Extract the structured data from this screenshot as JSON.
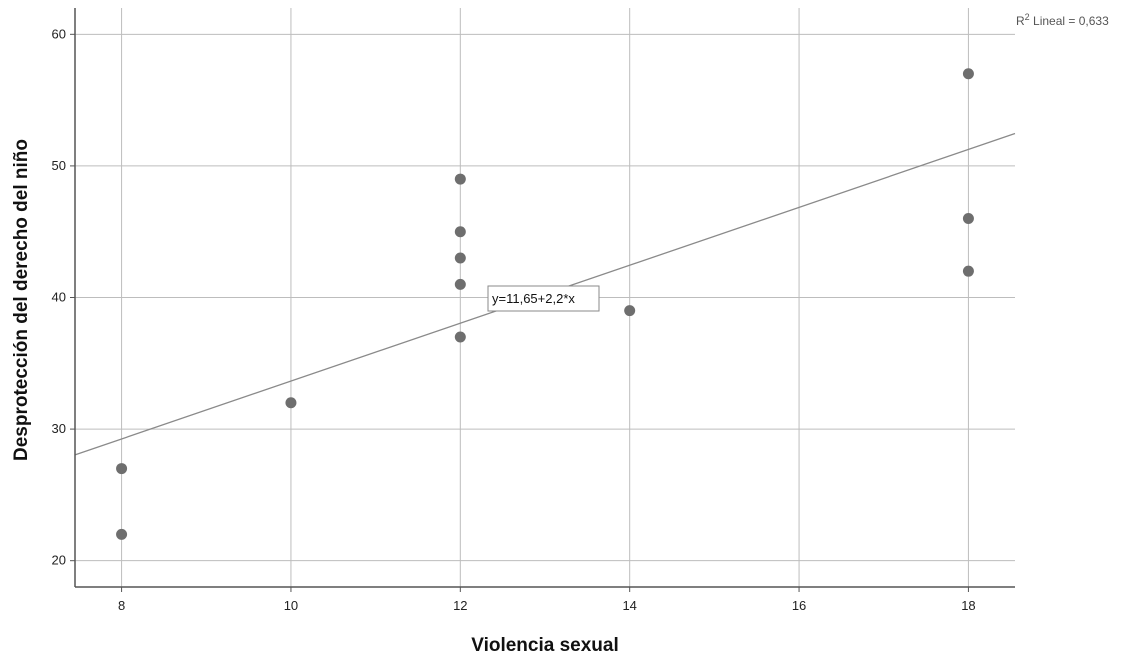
{
  "chart_data": {
    "type": "scatter",
    "xlabel": "Violencia sexual",
    "ylabel": "Desprotección del derecho del niño",
    "xlim": [
      7.45,
      18.55
    ],
    "ylim": [
      18,
      62
    ],
    "xticks": [
      8,
      10,
      12,
      14,
      16,
      18
    ],
    "yticks": [
      20,
      30,
      40,
      50,
      60
    ],
    "grid": true,
    "points": [
      {
        "x": 8,
        "y": 27
      },
      {
        "x": 8,
        "y": 22
      },
      {
        "x": 10,
        "y": 32
      },
      {
        "x": 12,
        "y": 49
      },
      {
        "x": 12,
        "y": 45
      },
      {
        "x": 12,
        "y": 43
      },
      {
        "x": 12,
        "y": 41
      },
      {
        "x": 12,
        "y": 37
      },
      {
        "x": 14,
        "y": 39
      },
      {
        "x": 18,
        "y": 57
      },
      {
        "x": 18,
        "y": 46
      },
      {
        "x": 18,
        "y": 42
      }
    ],
    "fit_line": {
      "intercept": 11.65,
      "slope": 2.2
    },
    "equation_label": "y=11,65+2,2*x",
    "r2_prefix": "R",
    "r2_sup": "2",
    "r2_text": " Lineal = 0,633",
    "colors": {
      "points": "#6e6e6e",
      "grid": "#bdbdbd",
      "line": "#8a8a8a",
      "axis": "#555555"
    }
  }
}
